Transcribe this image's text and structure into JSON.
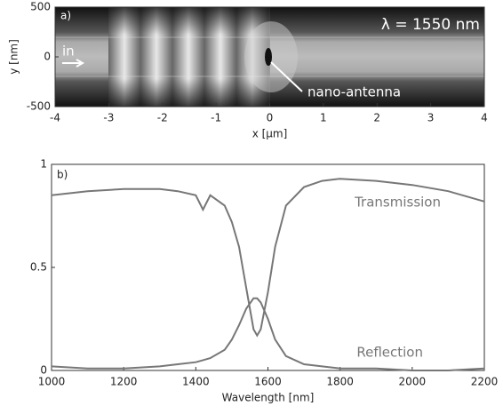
{
  "chart_data": [
    {
      "type": "image",
      "label": "a)",
      "annotations": [
        "λ = 1550 nm",
        "in",
        "nano-antenna"
      ],
      "xlabel": "x [µm]",
      "ylabel": "y [nm]",
      "xlim": [
        -4,
        4
      ],
      "xticks": [
        -4,
        -3,
        -2,
        -1,
        0,
        1,
        2,
        3,
        4
      ],
      "ylim": [
        -500,
        500
      ],
      "yticks": [
        -500,
        0,
        500
      ]
    },
    {
      "type": "line",
      "label": "b)",
      "xlabel": "Wavelength [nm]",
      "x": [
        1000,
        1100,
        1200,
        1300,
        1350,
        1400,
        1420,
        1440,
        1480,
        1500,
        1520,
        1540,
        1560,
        1570,
        1580,
        1600,
        1620,
        1650,
        1700,
        1750,
        1800,
        1900,
        2000,
        2100,
        2200
      ],
      "series": [
        {
          "name": "Transmission",
          "color": "#777777",
          "values": [
            0.85,
            0.87,
            0.88,
            0.88,
            0.87,
            0.85,
            0.78,
            0.85,
            0.8,
            0.72,
            0.6,
            0.4,
            0.2,
            0.17,
            0.2,
            0.38,
            0.6,
            0.8,
            0.89,
            0.92,
            0.93,
            0.92,
            0.9,
            0.87,
            0.82
          ]
        },
        {
          "name": "Reflection",
          "color": "#777777",
          "values": [
            0.02,
            0.01,
            0.01,
            0.02,
            0.03,
            0.04,
            0.05,
            0.06,
            0.1,
            0.15,
            0.22,
            0.3,
            0.35,
            0.35,
            0.33,
            0.25,
            0.15,
            0.07,
            0.03,
            0.02,
            0.01,
            0.01,
            0,
            0,
            0.01
          ]
        }
      ],
      "xlim": [
        1000,
        2200
      ],
      "xticks": [
        1000,
        1200,
        1400,
        1600,
        1800,
        2000,
        2200
      ],
      "ylim": [
        0,
        1
      ],
      "yticks": [
        0,
        0.5,
        1
      ]
    }
  ]
}
